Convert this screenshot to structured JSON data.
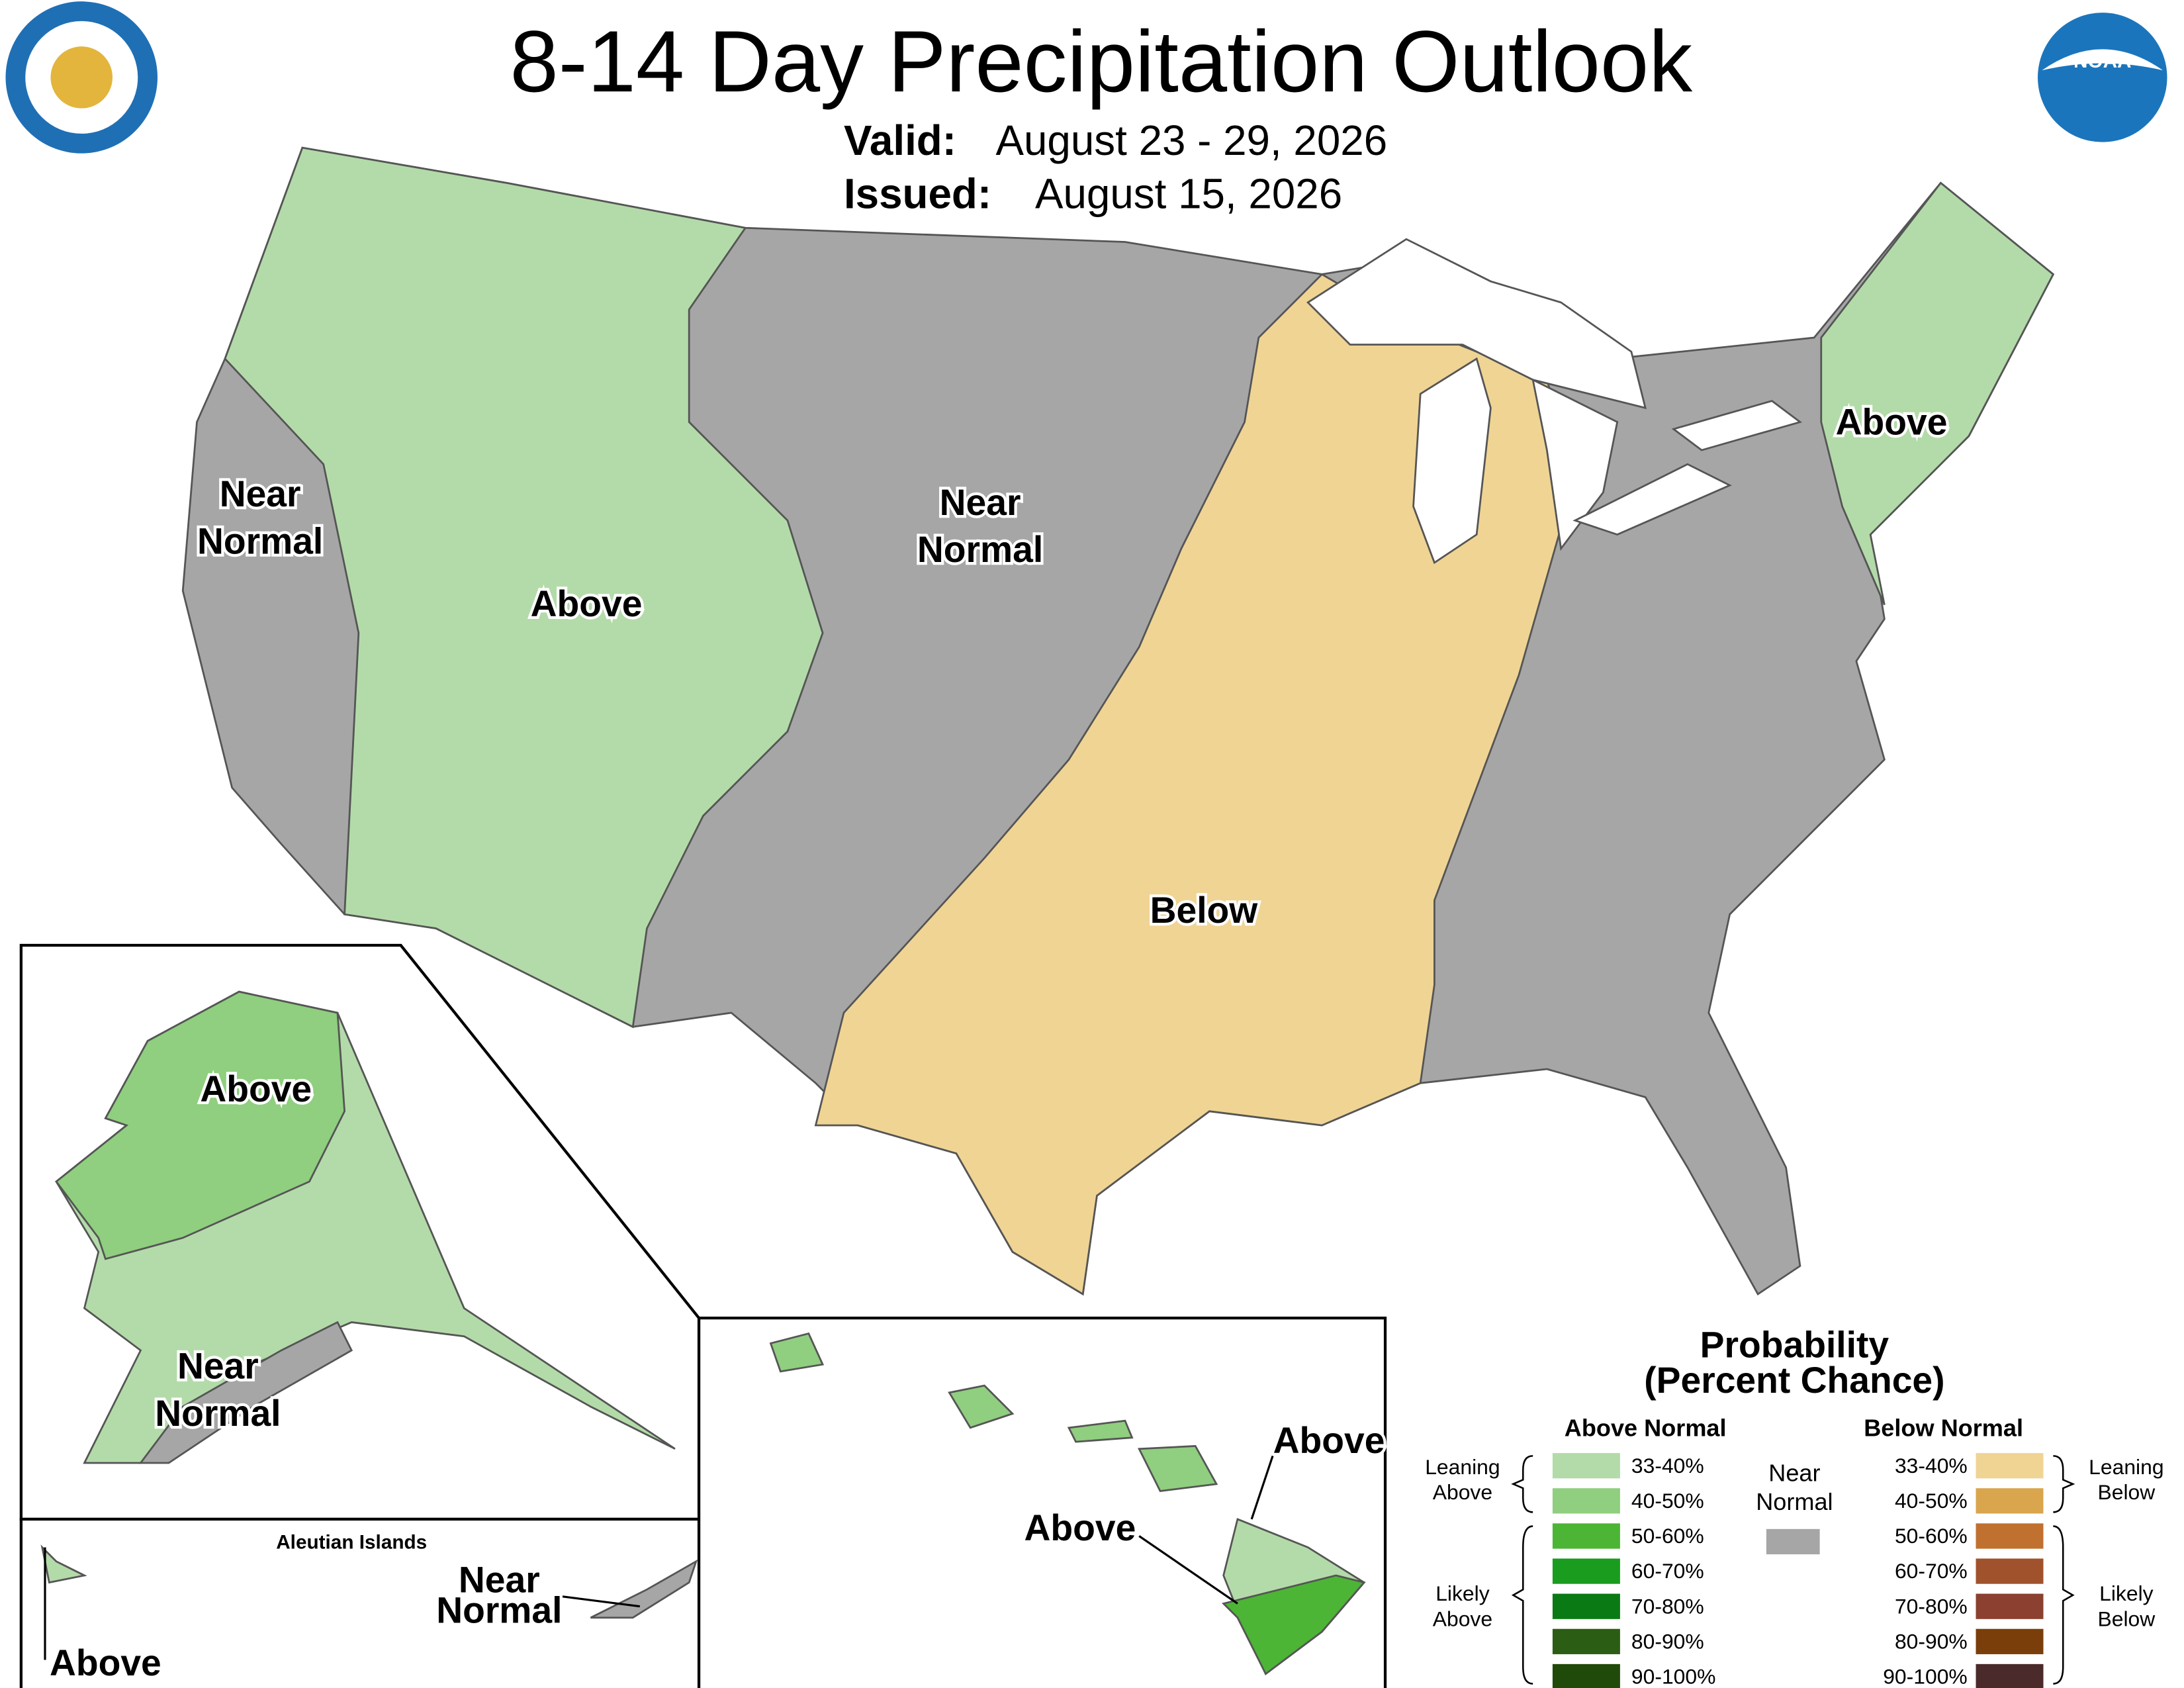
{
  "header": {
    "title": "8-14 Day Precipitation Outlook",
    "valid_label": "Valid:",
    "valid_dates": "August 23 - 29, 2026",
    "issued_label": "Issued:",
    "issued_date": "August 15, 2026"
  },
  "conus_labels": [
    [
      "Near",
      "Normal"
    ],
    [
      "Above"
    ],
    [
      "Near",
      "Normal"
    ],
    [
      "Below"
    ],
    [
      "Above"
    ]
  ],
  "alaska_labels": [
    [
      "Above"
    ],
    [
      "Near",
      "Normal"
    ]
  ],
  "aleutian": {
    "title": "Aleutian Islands",
    "labels": [
      [
        "Near",
        "Normal"
      ],
      [
        "Above"
      ]
    ]
  },
  "hawaii_labels": [
    [
      "Above"
    ],
    [
      "Above"
    ]
  ],
  "legend": {
    "title": [
      "Probability",
      "(Percent Chance)"
    ],
    "above": {
      "heading": "Above Normal",
      "items": [
        {
          "label": "33-40%",
          "color": "#b3dba9"
        },
        {
          "label": "40-50%",
          "color": "#8fcf7f"
        },
        {
          "label": "50-60%",
          "color": "#4cb535"
        },
        {
          "label": "60-70%",
          "color": "#1a9c1f"
        },
        {
          "label": "70-80%",
          "color": "#0a7a14"
        },
        {
          "label": "80-90%",
          "color": "#2b5e14"
        },
        {
          "label": "90-100%",
          "color": "#1f4a0a"
        }
      ],
      "groups": [
        [
          "Leaning",
          "Above"
        ],
        [
          "Likely",
          "Above"
        ]
      ]
    },
    "near": {
      "label": [
        "Near",
        "Normal"
      ],
      "color": "#a6a6a6"
    },
    "below": {
      "heading": "Below Normal",
      "items": [
        {
          "label": "33-40%",
          "color": "#f0d494"
        },
        {
          "label": "40-50%",
          "color": "#d9a64d"
        },
        {
          "label": "50-60%",
          "color": "#c0702f"
        },
        {
          "label": "60-70%",
          "color": "#a0522d"
        },
        {
          "label": "70-80%",
          "color": "#8b4030"
        },
        {
          "label": "80-90%",
          "color": "#7a3e0a"
        },
        {
          "label": "90-100%",
          "color": "#4a2a2a"
        }
      ],
      "groups": [
        [
          "Leaning",
          "Below"
        ],
        [
          "Likely",
          "Below"
        ]
      ]
    }
  }
}
